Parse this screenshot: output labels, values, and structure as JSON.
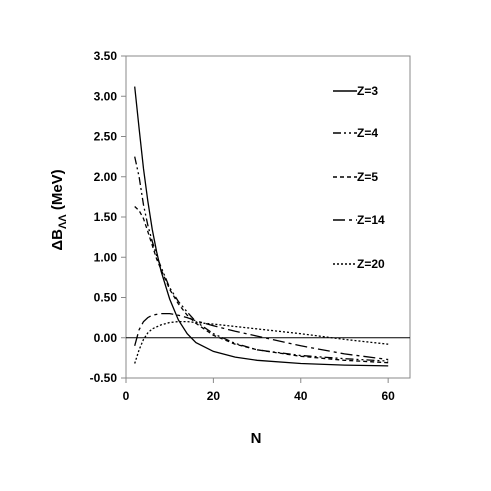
{
  "chart_data": {
    "type": "line",
    "xlabel": "N",
    "ylabel": "ΔBΛΛ (MeV)",
    "ylabel_main": "ΔB",
    "ylabel_sub": "ΛΛ",
    "ylabel_unit": " (MeV)",
    "xlim": [
      0,
      65
    ],
    "ylim": [
      -0.5,
      3.5
    ],
    "xticks": [
      0,
      20,
      40,
      60
    ],
    "yticks": [
      -0.5,
      0.0,
      0.5,
      1.0,
      1.5,
      2.0,
      2.5,
      3.0,
      3.5
    ],
    "ytick_labels": [
      "-0.50",
      "0.00",
      "0.50",
      "1.00",
      "1.50",
      "2.00",
      "2.50",
      "3.00",
      "3.50"
    ],
    "xtick_labels": [
      "0",
      "20",
      "40",
      "60"
    ],
    "zero_line": true,
    "grid": false,
    "legend_position": "right",
    "series": [
      {
        "name": "Z=3",
        "dash": "none",
        "points": [
          [
            2,
            3.12
          ],
          [
            3,
            2.6
          ],
          [
            4,
            2.1
          ],
          [
            5,
            1.7
          ],
          [
            6,
            1.35
          ],
          [
            7,
            1.07
          ],
          [
            8,
            0.83
          ],
          [
            10,
            0.48
          ],
          [
            12,
            0.22
          ],
          [
            14,
            0.05
          ],
          [
            16,
            -0.06
          ],
          [
            20,
            -0.17
          ],
          [
            25,
            -0.24
          ],
          [
            30,
            -0.28
          ],
          [
            40,
            -0.32
          ],
          [
            50,
            -0.34
          ],
          [
            60,
            -0.35
          ]
        ]
      },
      {
        "name": "Z=4",
        "dash": "8,3,2,3,2,3",
        "points": [
          [
            2,
            2.25
          ],
          [
            3,
            2.0
          ],
          [
            4,
            1.65
          ],
          [
            5,
            1.4
          ],
          [
            6,
            1.2
          ],
          [
            7,
            1.02
          ],
          [
            8,
            0.88
          ],
          [
            10,
            0.62
          ],
          [
            12,
            0.45
          ],
          [
            14,
            0.32
          ],
          [
            16,
            0.2
          ],
          [
            20,
            0.05
          ],
          [
            25,
            -0.07
          ],
          [
            30,
            -0.15
          ],
          [
            40,
            -0.22
          ],
          [
            50,
            -0.26
          ],
          [
            60,
            -0.29
          ]
        ]
      },
      {
        "name": "Z=5",
        "dash": "4,3",
        "points": [
          [
            2,
            1.63
          ],
          [
            3,
            1.58
          ],
          [
            4,
            1.48
          ],
          [
            5,
            1.32
          ],
          [
            6,
            1.15
          ],
          [
            7,
            0.98
          ],
          [
            8,
            0.85
          ],
          [
            10,
            0.6
          ],
          [
            12,
            0.42
          ],
          [
            14,
            0.28
          ],
          [
            16,
            0.18
          ],
          [
            20,
            0.03
          ],
          [
            25,
            -0.08
          ],
          [
            30,
            -0.15
          ],
          [
            40,
            -0.23
          ],
          [
            50,
            -0.28
          ],
          [
            60,
            -0.31
          ]
        ]
      },
      {
        "name": "Z=14",
        "dash": "12,4,3,4",
        "points": [
          [
            2,
            -0.1
          ],
          [
            3,
            0.1
          ],
          [
            4,
            0.2
          ],
          [
            5,
            0.25
          ],
          [
            6,
            0.28
          ],
          [
            8,
            0.3
          ],
          [
            10,
            0.3
          ],
          [
            12,
            0.28
          ],
          [
            14,
            0.25
          ],
          [
            16,
            0.21
          ],
          [
            20,
            0.15
          ],
          [
            25,
            0.08
          ],
          [
            30,
            0.02
          ],
          [
            40,
            -0.1
          ],
          [
            50,
            -0.2
          ],
          [
            60,
            -0.27
          ]
        ]
      },
      {
        "name": "Z=20",
        "dash": "2,2",
        "points": [
          [
            2,
            -0.32
          ],
          [
            3,
            -0.15
          ],
          [
            4,
            -0.02
          ],
          [
            5,
            0.06
          ],
          [
            6,
            0.11
          ],
          [
            8,
            0.16
          ],
          [
            10,
            0.19
          ],
          [
            12,
            0.2
          ],
          [
            14,
            0.2
          ],
          [
            16,
            0.19
          ],
          [
            20,
            0.17
          ],
          [
            25,
            0.14
          ],
          [
            30,
            0.11
          ],
          [
            40,
            0.05
          ],
          [
            50,
            -0.02
          ],
          [
            60,
            -0.08
          ]
        ]
      }
    ]
  }
}
